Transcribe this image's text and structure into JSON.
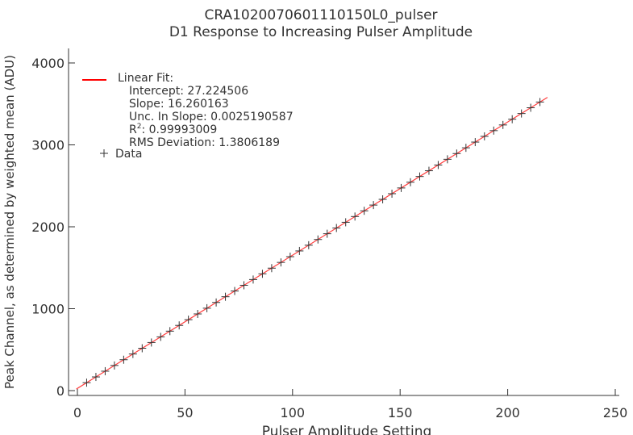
{
  "chart_data": {
    "type": "scatter",
    "title": "CRA1020070601110150L0_pulser",
    "subtitle": "D1 Response to Increasing Pulser Amplitude",
    "xlabel": "Pulser Amplitude Setting",
    "ylabel": "Peak Channel, as determined by weighted mean (ADU)",
    "xlim": [
      0,
      250
    ],
    "ylim": [
      0,
      4000
    ],
    "x_ticks": [
      "0",
      "50",
      "100",
      "150",
      "200",
      "250"
    ],
    "y_ticks": [
      "0",
      "1000",
      "2000",
      "3000",
      "4000"
    ],
    "grid": false,
    "legend_position": "top-left",
    "legend": {
      "fit_label": "Linear Fit:",
      "intercept": "Intercept:  27.224506",
      "slope": "Slope:  16.260163",
      "unc_slope": "Unc. In Slope:  0.0025190587",
      "r2_label": "R",
      "r2_sup": "2",
      "r2_value": ":  0.99993009",
      "rms": "RMS Deviation:  1.3806189",
      "data_label": "Data"
    },
    "fit": {
      "intercept": 27.224506,
      "slope": 16.260163,
      "color": "#ff0000"
    },
    "series": [
      {
        "name": "Data",
        "color": "#333333",
        "marker": "plus",
        "x": [
          4.3,
          8.6,
          12.9,
          17.2,
          21.5,
          25.8,
          30.1,
          34.4,
          38.7,
          43,
          47.3,
          51.6,
          55.9,
          60.2,
          64.5,
          68.8,
          73.1,
          77.4,
          81.7,
          86,
          90.3,
          94.6,
          98.9,
          103.2,
          107.5,
          111.8,
          116.1,
          120.4,
          124.7,
          129,
          133.3,
          137.6,
          141.9,
          146.2,
          150.5,
          154.8,
          159.1,
          163.4,
          167.7,
          172,
          176.3,
          180.6,
          184.9,
          189.2,
          193.5,
          197.8,
          202.1,
          206.4,
          210.7,
          215
        ],
        "y": [
          97,
          167,
          237,
          307,
          377,
          447,
          517,
          587,
          656,
          726,
          796,
          866,
          936,
          1006,
          1076,
          1146,
          1216,
          1286,
          1356,
          1426,
          1495,
          1565,
          1635,
          1705,
          1775,
          1845,
          1915,
          1985,
          2055,
          2125,
          2195,
          2265,
          2335,
          2404,
          2474,
          2544,
          2614,
          2684,
          2754,
          2824,
          2894,
          2964,
          3034,
          3104,
          3174,
          3243,
          3313,
          3383,
          3453,
          3523
        ]
      }
    ]
  }
}
